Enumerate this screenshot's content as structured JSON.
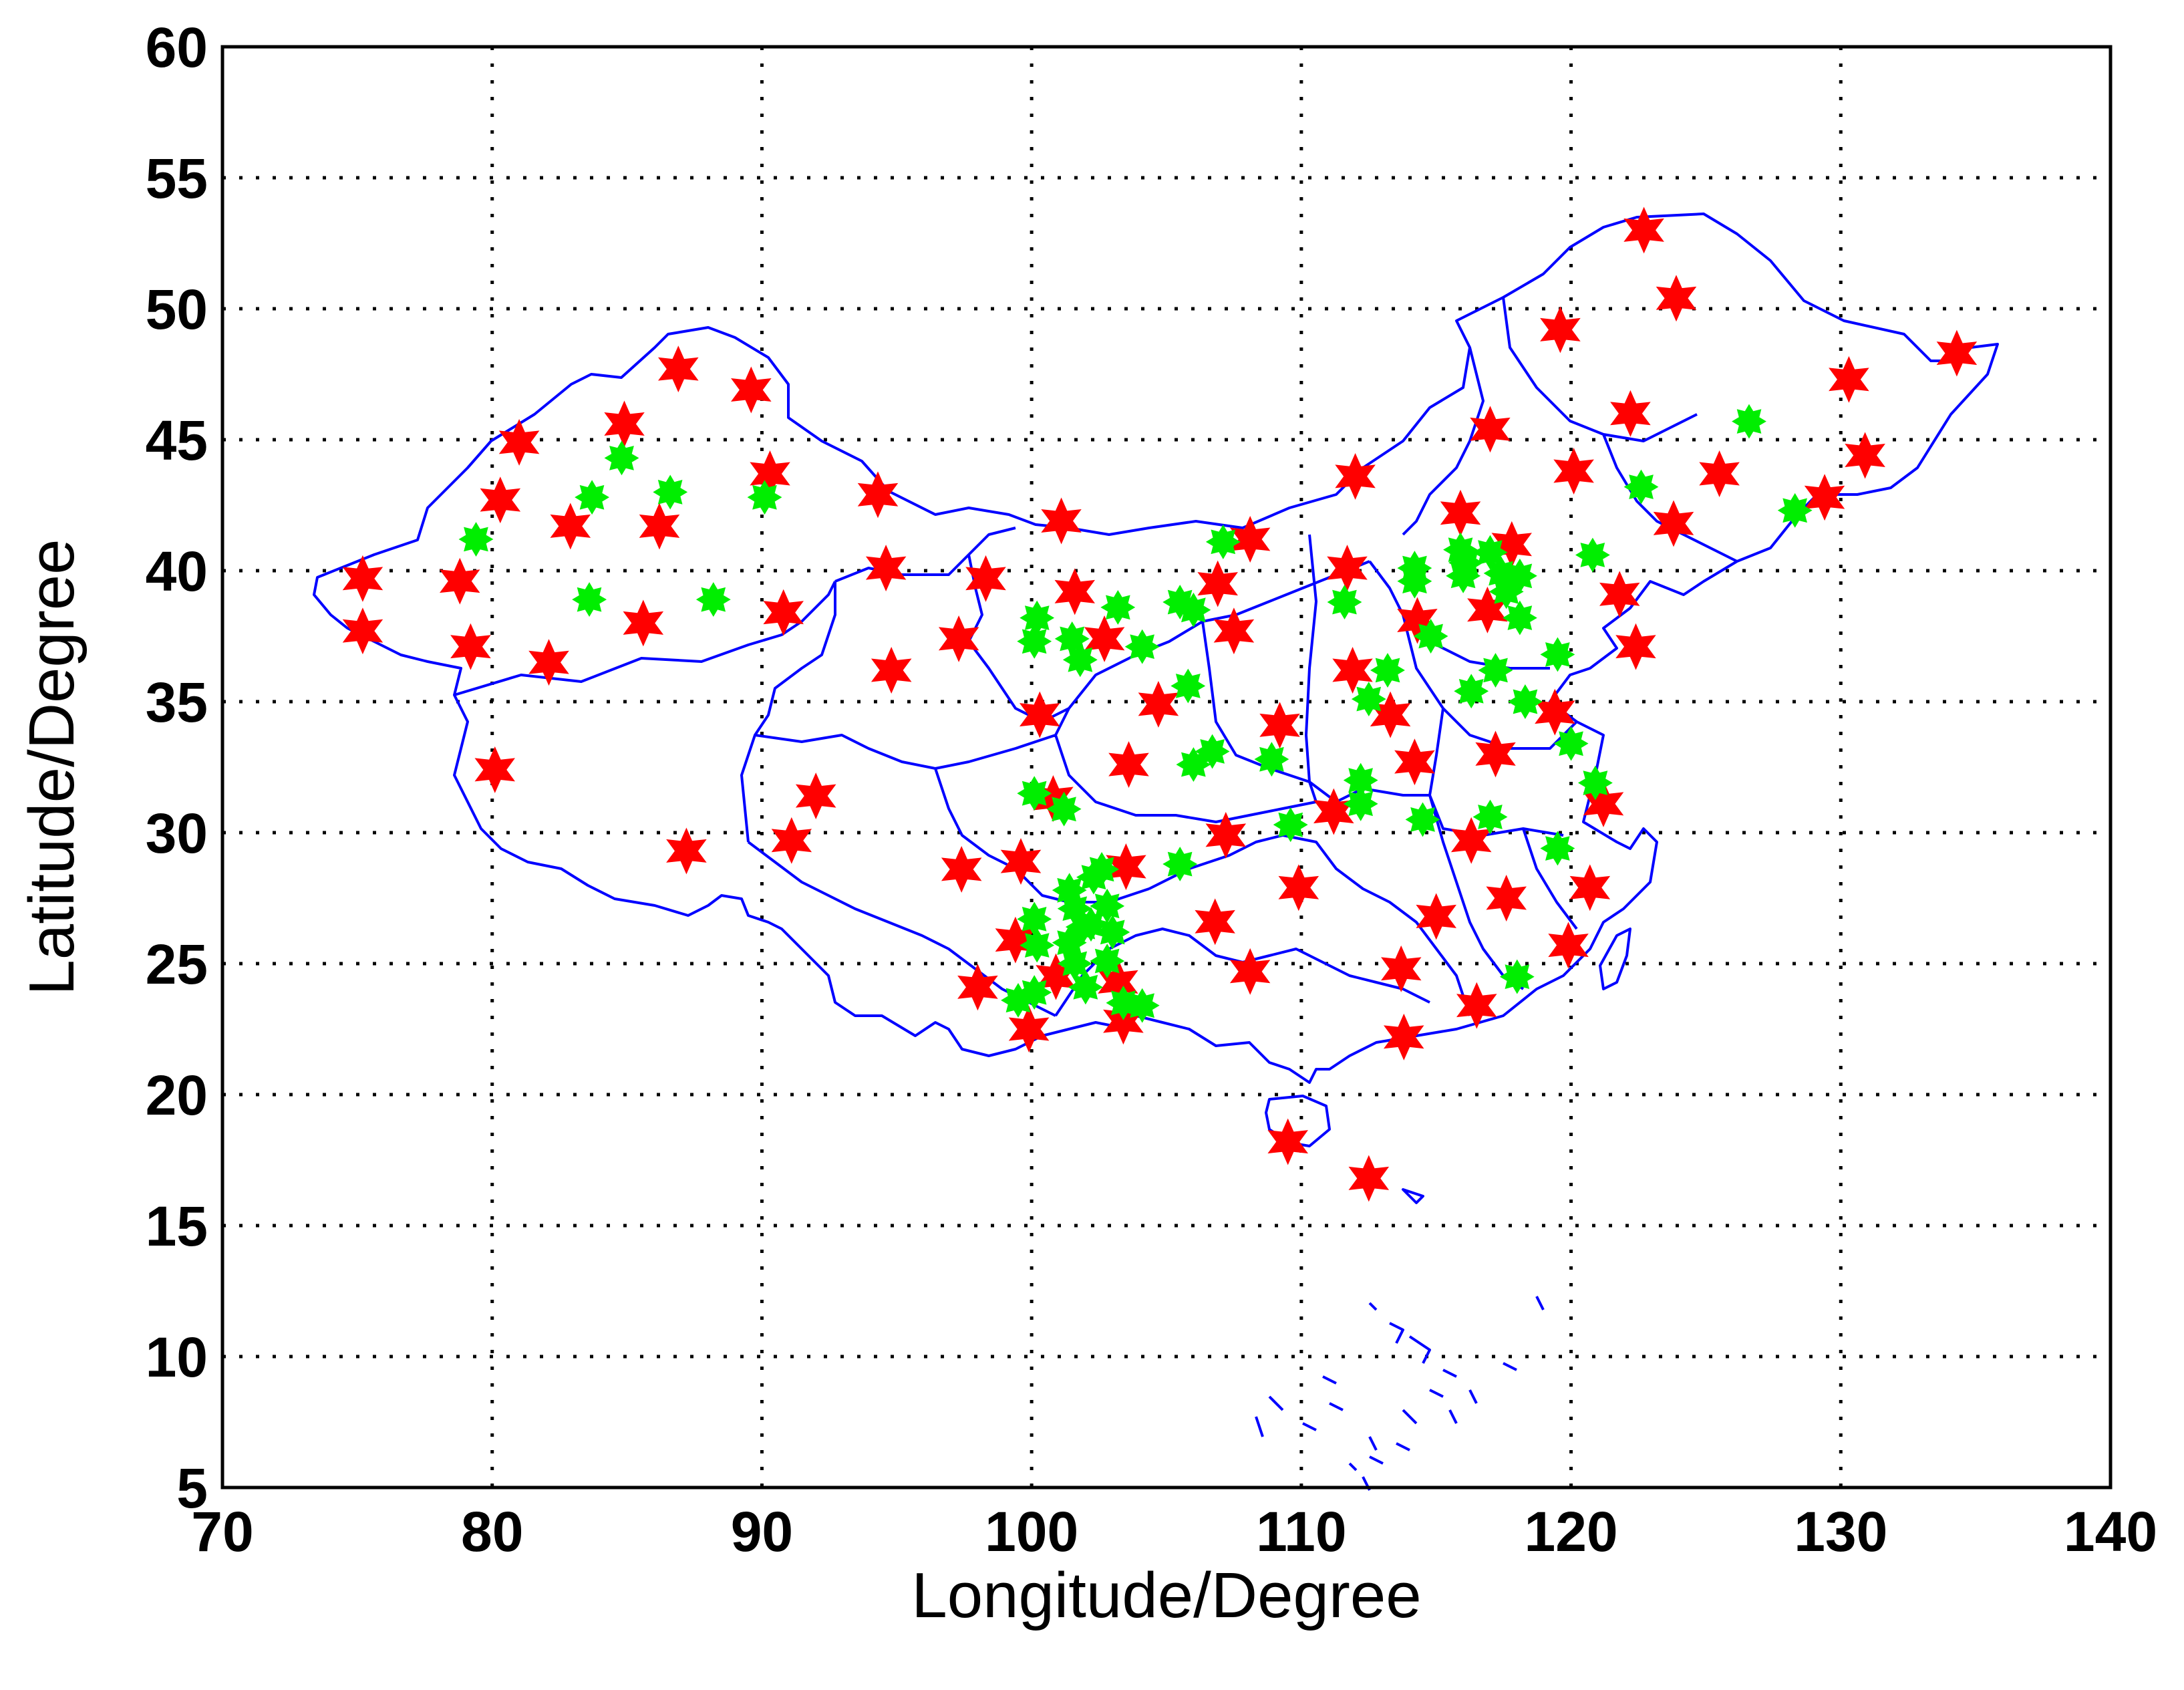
{
  "chart_data": {
    "type": "scatter",
    "title": "",
    "xlabel": "Longitude/Degree",
    "ylabel": "Latitude/Degree",
    "xlim": [
      70,
      140
    ],
    "ylim": [
      5,
      60
    ],
    "xticks": [
      70,
      80,
      90,
      100,
      110,
      120,
      130,
      140
    ],
    "yticks": [
      5,
      10,
      15,
      20,
      25,
      30,
      35,
      40,
      45,
      50,
      55,
      60
    ],
    "grid": true,
    "colors": {
      "red_marker": "#ff0000",
      "green_marker": "#00ee00",
      "boundary": "#0000ff"
    },
    "series": [
      {
        "marker": "star",
        "color": "#ff0000",
        "points": [
          [
            75.2,
            39.7
          ],
          [
            75.2,
            37.7
          ],
          [
            78.8,
            39.6
          ],
          [
            79.2,
            37.1
          ],
          [
            80.1,
            32.4
          ],
          [
            80.3,
            42.7
          ],
          [
            81.0,
            44.9
          ],
          [
            82.1,
            36.5
          ],
          [
            82.9,
            41.7
          ],
          [
            84.9,
            45.6
          ],
          [
            85.6,
            38.0
          ],
          [
            86.2,
            41.7
          ],
          [
            86.9,
            47.7
          ],
          [
            87.2,
            29.3
          ],
          [
            89.6,
            46.9
          ],
          [
            90.3,
            43.7
          ],
          [
            90.8,
            38.4
          ],
          [
            91.1,
            29.7
          ],
          [
            92.0,
            31.4
          ],
          [
            94.3,
            42.9
          ],
          [
            94.6,
            40.1
          ],
          [
            94.8,
            36.2
          ],
          [
            97.3,
            37.4
          ],
          [
            97.4,
            28.6
          ],
          [
            98.0,
            24.1
          ],
          [
            98.3,
            39.7
          ],
          [
            99.4,
            25.9
          ],
          [
            99.6,
            28.9
          ],
          [
            99.9,
            22.5
          ],
          [
            100.3,
            34.5
          ],
          [
            100.8,
            31.3
          ],
          [
            100.9,
            24.5
          ],
          [
            101.1,
            41.9
          ],
          [
            101.6,
            39.2
          ],
          [
            102.7,
            37.4
          ],
          [
            103.2,
            24.3
          ],
          [
            103.4,
            22.8
          ],
          [
            103.5,
            28.7
          ],
          [
            103.6,
            32.6
          ],
          [
            104.7,
            34.9
          ],
          [
            106.9,
            39.5
          ],
          [
            107.2,
            29.9
          ],
          [
            107.5,
            37.7
          ],
          [
            106.8,
            26.6
          ],
          [
            108.1,
            41.2
          ],
          [
            108.1,
            24.7
          ],
          [
            109.2,
            34.1
          ],
          [
            109.5,
            18.2
          ],
          [
            109.9,
            27.9
          ],
          [
            111.2,
            30.8
          ],
          [
            111.7,
            40.1
          ],
          [
            111.9,
            36.2
          ],
          [
            112.0,
            43.6
          ],
          [
            112.5,
            16.8
          ],
          [
            113.3,
            34.5
          ],
          [
            113.7,
            24.8
          ],
          [
            113.8,
            22.2
          ],
          [
            114.2,
            32.7
          ],
          [
            114.3,
            38.1
          ],
          [
            115.0,
            26.8
          ],
          [
            115.9,
            42.2
          ],
          [
            116.3,
            29.7
          ],
          [
            116.5,
            23.4
          ],
          [
            117.0,
            45.4
          ],
          [
            116.9,
            38.5
          ],
          [
            117.2,
            33.0
          ],
          [
            117.6,
            27.5
          ],
          [
            117.8,
            41.0
          ],
          [
            119.6,
            49.2
          ],
          [
            119.9,
            25.7
          ],
          [
            119.4,
            34.6
          ],
          [
            120.1,
            43.8
          ],
          [
            120.7,
            27.9
          ],
          [
            121.2,
            31.1
          ],
          [
            121.8,
            39.1
          ],
          [
            122.2,
            46.0
          ],
          [
            122.4,
            37.1
          ],
          [
            122.7,
            53.0
          ],
          [
            123.8,
            41.8
          ],
          [
            123.9,
            50.4
          ],
          [
            125.5,
            43.7
          ],
          [
            129.4,
            42.8
          ],
          [
            130.3,
            47.3
          ],
          [
            130.9,
            44.4
          ],
          [
            134.3,
            48.3
          ]
        ]
      },
      {
        "marker": "asterisk",
        "color": "#00ee00",
        "points": [
          [
            79.4,
            41.2
          ],
          [
            83.7,
            42.8
          ],
          [
            83.6,
            38.9
          ],
          [
            84.8,
            44.3
          ],
          [
            86.6,
            43.0
          ],
          [
            88.2,
            38.9
          ],
          [
            90.1,
            42.8
          ],
          [
            100.2,
            38.2
          ],
          [
            100.1,
            37.3
          ],
          [
            100.1,
            31.5
          ],
          [
            101.2,
            30.9
          ],
          [
            101.5,
            37.4
          ],
          [
            101.8,
            36.6
          ],
          [
            103.2,
            38.6
          ],
          [
            104.1,
            37.1
          ],
          [
            105.5,
            38.8
          ],
          [
            106.0,
            38.5
          ],
          [
            105.8,
            35.6
          ],
          [
            106.0,
            32.6
          ],
          [
            106.7,
            33.1
          ],
          [
            107.1,
            41.1
          ],
          [
            105.5,
            28.8
          ],
          [
            108.9,
            32.8
          ],
          [
            109.6,
            30.3
          ],
          [
            100.1,
            26.7
          ],
          [
            100.2,
            25.7
          ],
          [
            99.5,
            23.6
          ],
          [
            100.1,
            23.9
          ],
          [
            101.4,
            27.8
          ],
          [
            101.6,
            27.1
          ],
          [
            102.3,
            28.3
          ],
          [
            102.6,
            28.6
          ],
          [
            101.4,
            25.8
          ],
          [
            101.6,
            25.0
          ],
          [
            101.9,
            26.4
          ],
          [
            102.2,
            26.5
          ],
          [
            102.8,
            27.2
          ],
          [
            103.0,
            26.2
          ],
          [
            102.8,
            25.1
          ],
          [
            102.0,
            24.1
          ],
          [
            103.4,
            23.5
          ],
          [
            104.1,
            23.4
          ],
          [
            111.6,
            38.8
          ],
          [
            112.2,
            32.0
          ],
          [
            112.2,
            31.1
          ],
          [
            112.5,
            35.1
          ],
          [
            113.2,
            36.2
          ],
          [
            114.2,
            39.6
          ],
          [
            114.2,
            40.1
          ],
          [
            114.5,
            30.5
          ],
          [
            114.8,
            37.5
          ],
          [
            115.9,
            40.8
          ],
          [
            116.0,
            39.8
          ],
          [
            116.1,
            40.3
          ],
          [
            116.3,
            35.4
          ],
          [
            117.0,
            40.7
          ],
          [
            117.2,
            36.2
          ],
          [
            117.0,
            30.6
          ],
          [
            117.4,
            39.9
          ],
          [
            117.6,
            39.2
          ],
          [
            118.1,
            38.2
          ],
          [
            118.1,
            39.8
          ],
          [
            118.3,
            35.0
          ],
          [
            118.0,
            24.5
          ],
          [
            119.5,
            29.4
          ],
          [
            119.5,
            36.8
          ],
          [
            120.0,
            33.4
          ],
          [
            120.8,
            40.6
          ],
          [
            120.9,
            31.9
          ],
          [
            122.6,
            43.2
          ],
          [
            126.6,
            45.7
          ],
          [
            128.3,
            42.3
          ]
        ]
      }
    ]
  }
}
